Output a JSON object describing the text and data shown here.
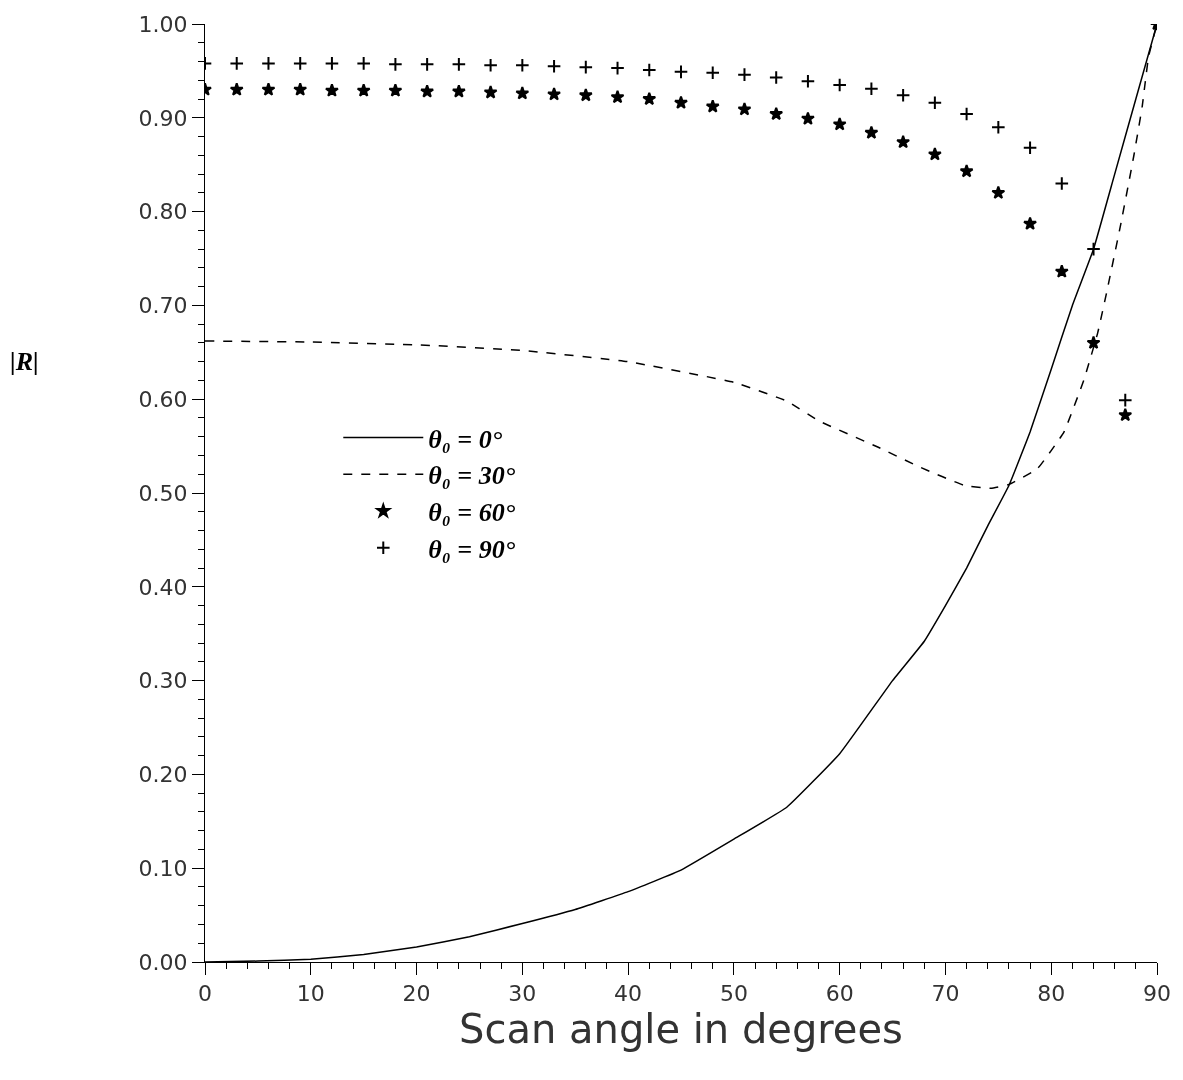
{
  "chart_data": {
    "type": "line",
    "xlabel": "Scan angle in degrees",
    "ylabel": "|R|",
    "xlim": [
      0,
      90
    ],
    "xticks": [
      0,
      10,
      20,
      30,
      40,
      50,
      60,
      70,
      80,
      90
    ],
    "ylim": [
      0,
      1
    ],
    "yticks": [
      {
        "value": 0,
        "label": "0.00"
      },
      {
        "value": 0.1,
        "label": "0.10"
      },
      {
        "value": 0.2,
        "label": "0.20"
      },
      {
        "value": 0.3,
        "label": "0.30"
      },
      {
        "value": 0.4,
        "label": "0.40"
      },
      {
        "value": 0.5,
        "label": "0.50"
      },
      {
        "value": 0.6,
        "label": "0.60"
      },
      {
        "value": 0.7,
        "label": "0.70"
      },
      {
        "value": 0.8,
        "label": "0.80"
      },
      {
        "value": 0.9,
        "label": "0.90"
      },
      {
        "value": 1,
        "label": "1.00"
      }
    ],
    "legend": "left",
    "series": [
      {
        "name": "θ₀ = 0°",
        "line_style": "solid",
        "color": "#000000",
        "x": [
          0,
          5,
          10,
          15,
          20,
          25,
          30,
          35,
          40,
          45,
          50,
          55,
          60,
          65,
          68,
          70,
          72,
          74,
          76,
          78,
          80,
          82,
          84,
          86,
          88,
          90
        ],
        "values": [
          0,
          0.001,
          0.003,
          0.008,
          0.016,
          0.027,
          0.041,
          0.056,
          0.075,
          0.098,
          0.131,
          0.165,
          0.222,
          0.3,
          0.342,
          0.38,
          0.42,
          0.465,
          0.508,
          0.565,
          0.632,
          0.7,
          0.76,
          0.84,
          0.92,
          1.0
        ]
      },
      {
        "name": "θ₀ = 30°",
        "line_style": "dashed",
        "color": "#000000",
        "x": [
          0,
          10,
          20,
          30,
          40,
          50,
          55,
          58,
          63.6,
          67.7,
          71.8,
          74.3,
          76,
          78.7,
          81.2,
          83.1,
          84.4,
          85.3,
          86.6,
          87.8,
          88.6,
          89.2,
          90
        ],
        "values": [
          0.662,
          0.661,
          0.658,
          0.652,
          0.64,
          0.618,
          0.598,
          0.577,
          0.549,
          0.527,
          0.508,
          0.505,
          0.509,
          0.526,
          0.565,
          0.621,
          0.671,
          0.717,
          0.788,
          0.859,
          0.912,
          0.965,
          1.0
        ]
      },
      {
        "name": "θ₀ = 60°",
        "type": "scatter",
        "marker": "star",
        "color": "#000000",
        "x": [
          0,
          3,
          6,
          9,
          12,
          15,
          18,
          21,
          24,
          27,
          30,
          33,
          36,
          39,
          42,
          45,
          48,
          51,
          54,
          57,
          60,
          63,
          66,
          69,
          72,
          75,
          78,
          81,
          84,
          87,
          90
        ],
        "values": [
          0.93,
          0.93,
          0.93,
          0.93,
          0.929,
          0.929,
          0.929,
          0.928,
          0.928,
          0.927,
          0.926,
          0.925,
          0.924,
          0.922,
          0.92,
          0.916,
          0.912,
          0.909,
          0.904,
          0.899,
          0.893,
          0.884,
          0.874,
          0.861,
          0.843,
          0.82,
          0.787,
          0.736,
          0.66,
          0.583,
          1.0
        ]
      },
      {
        "name": "θ₀ = 90°",
        "type": "scatter",
        "marker": "cross",
        "color": "#000000",
        "x": [
          0,
          3,
          6,
          9,
          12,
          15,
          18,
          21,
          24,
          27,
          30,
          33,
          36,
          39,
          42,
          45,
          48,
          51,
          54,
          57,
          60,
          63,
          66,
          69,
          72,
          75,
          78,
          81,
          84,
          87,
          90
        ],
        "values": [
          0.958,
          0.958,
          0.958,
          0.958,
          0.958,
          0.958,
          0.957,
          0.957,
          0.957,
          0.956,
          0.956,
          0.955,
          0.954,
          0.953,
          0.951,
          0.949,
          0.948,
          0.946,
          0.943,
          0.939,
          0.935,
          0.931,
          0.924,
          0.916,
          0.904,
          0.89,
          0.868,
          0.83,
          0.76,
          0.599,
          1.0
        ]
      }
    ]
  }
}
